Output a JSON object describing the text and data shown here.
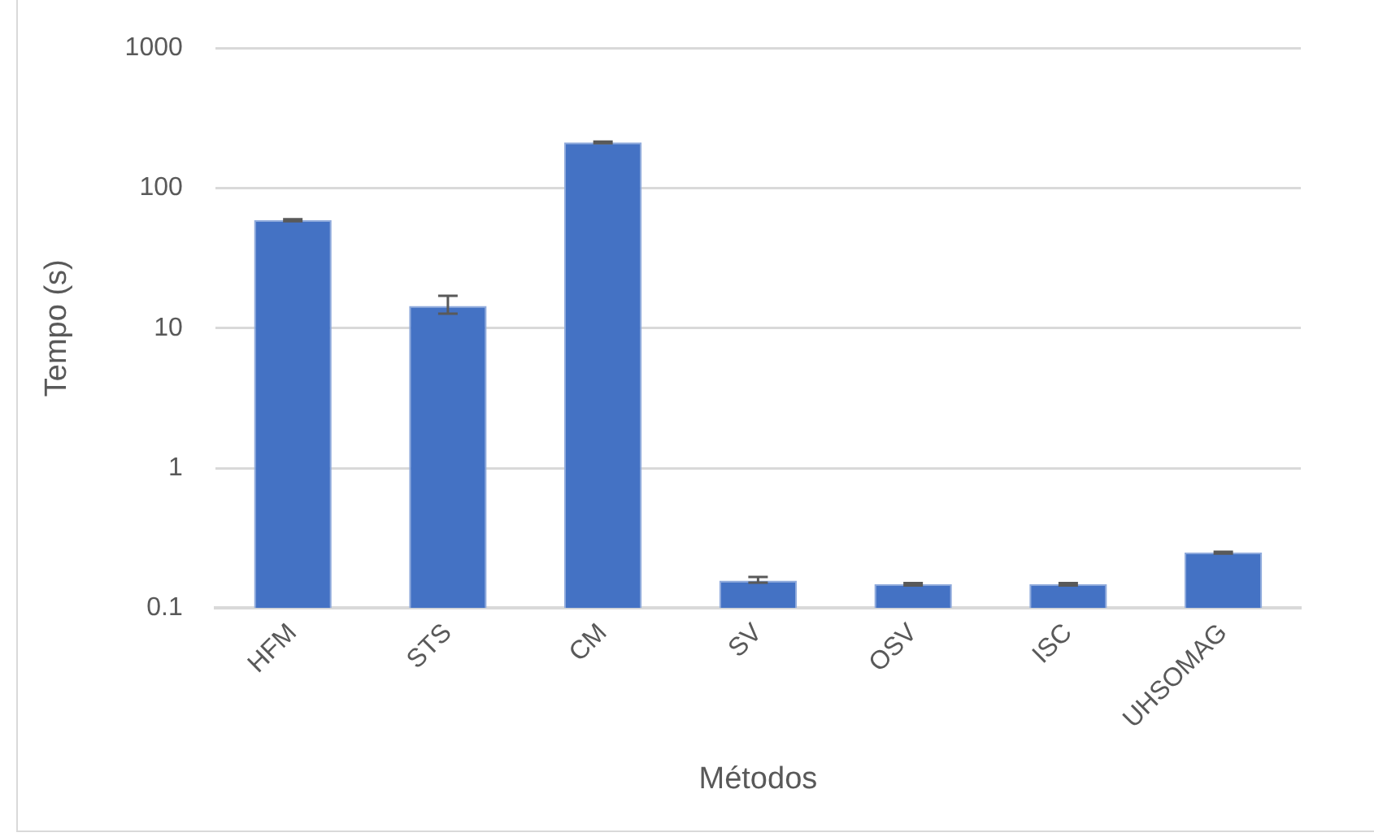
{
  "chart_data": {
    "type": "bar",
    "xlabel": "Métodos",
    "ylabel": "Tempo (s)",
    "categories": [
      "HFM",
      "STS",
      "CM",
      "SV",
      "OSV",
      "ISC",
      "UHSOMAG"
    ],
    "values": [
      59,
      14.4,
      212,
      0.157,
      0.148,
      0.148,
      0.249
    ],
    "errors": [
      1,
      [
        12.7,
        17
      ],
      3,
      [
        0.152,
        0.167
      ],
      0.003,
      0.003,
      0.004
    ],
    "color": "#4472c4",
    "log": true,
    "ylim": [
      0.1,
      1000
    ],
    "yticks": [
      0.1,
      1,
      10,
      100,
      1000
    ],
    "grid": "y",
    "legend": false
  }
}
